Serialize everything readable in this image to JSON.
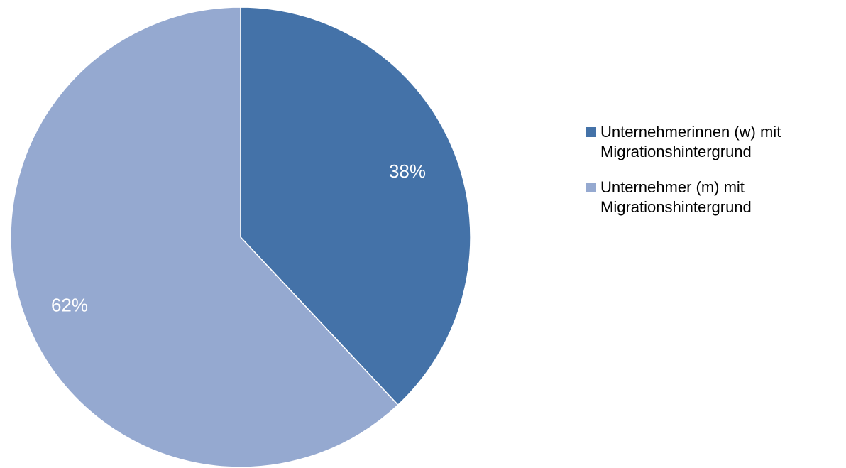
{
  "chart_data": {
    "type": "pie",
    "title": "",
    "slices": [
      {
        "label": "Unternehmerinnen (w) mit Migrationshintergrund",
        "value": 38,
        "value_label": "38%",
        "color": "#4472A8"
      },
      {
        "label": "Unternehmer (m) mit Migrationshintergrund",
        "value": 62,
        "value_label": "62%",
        "color": "#95A9D0"
      }
    ],
    "legend_placement": "right"
  }
}
